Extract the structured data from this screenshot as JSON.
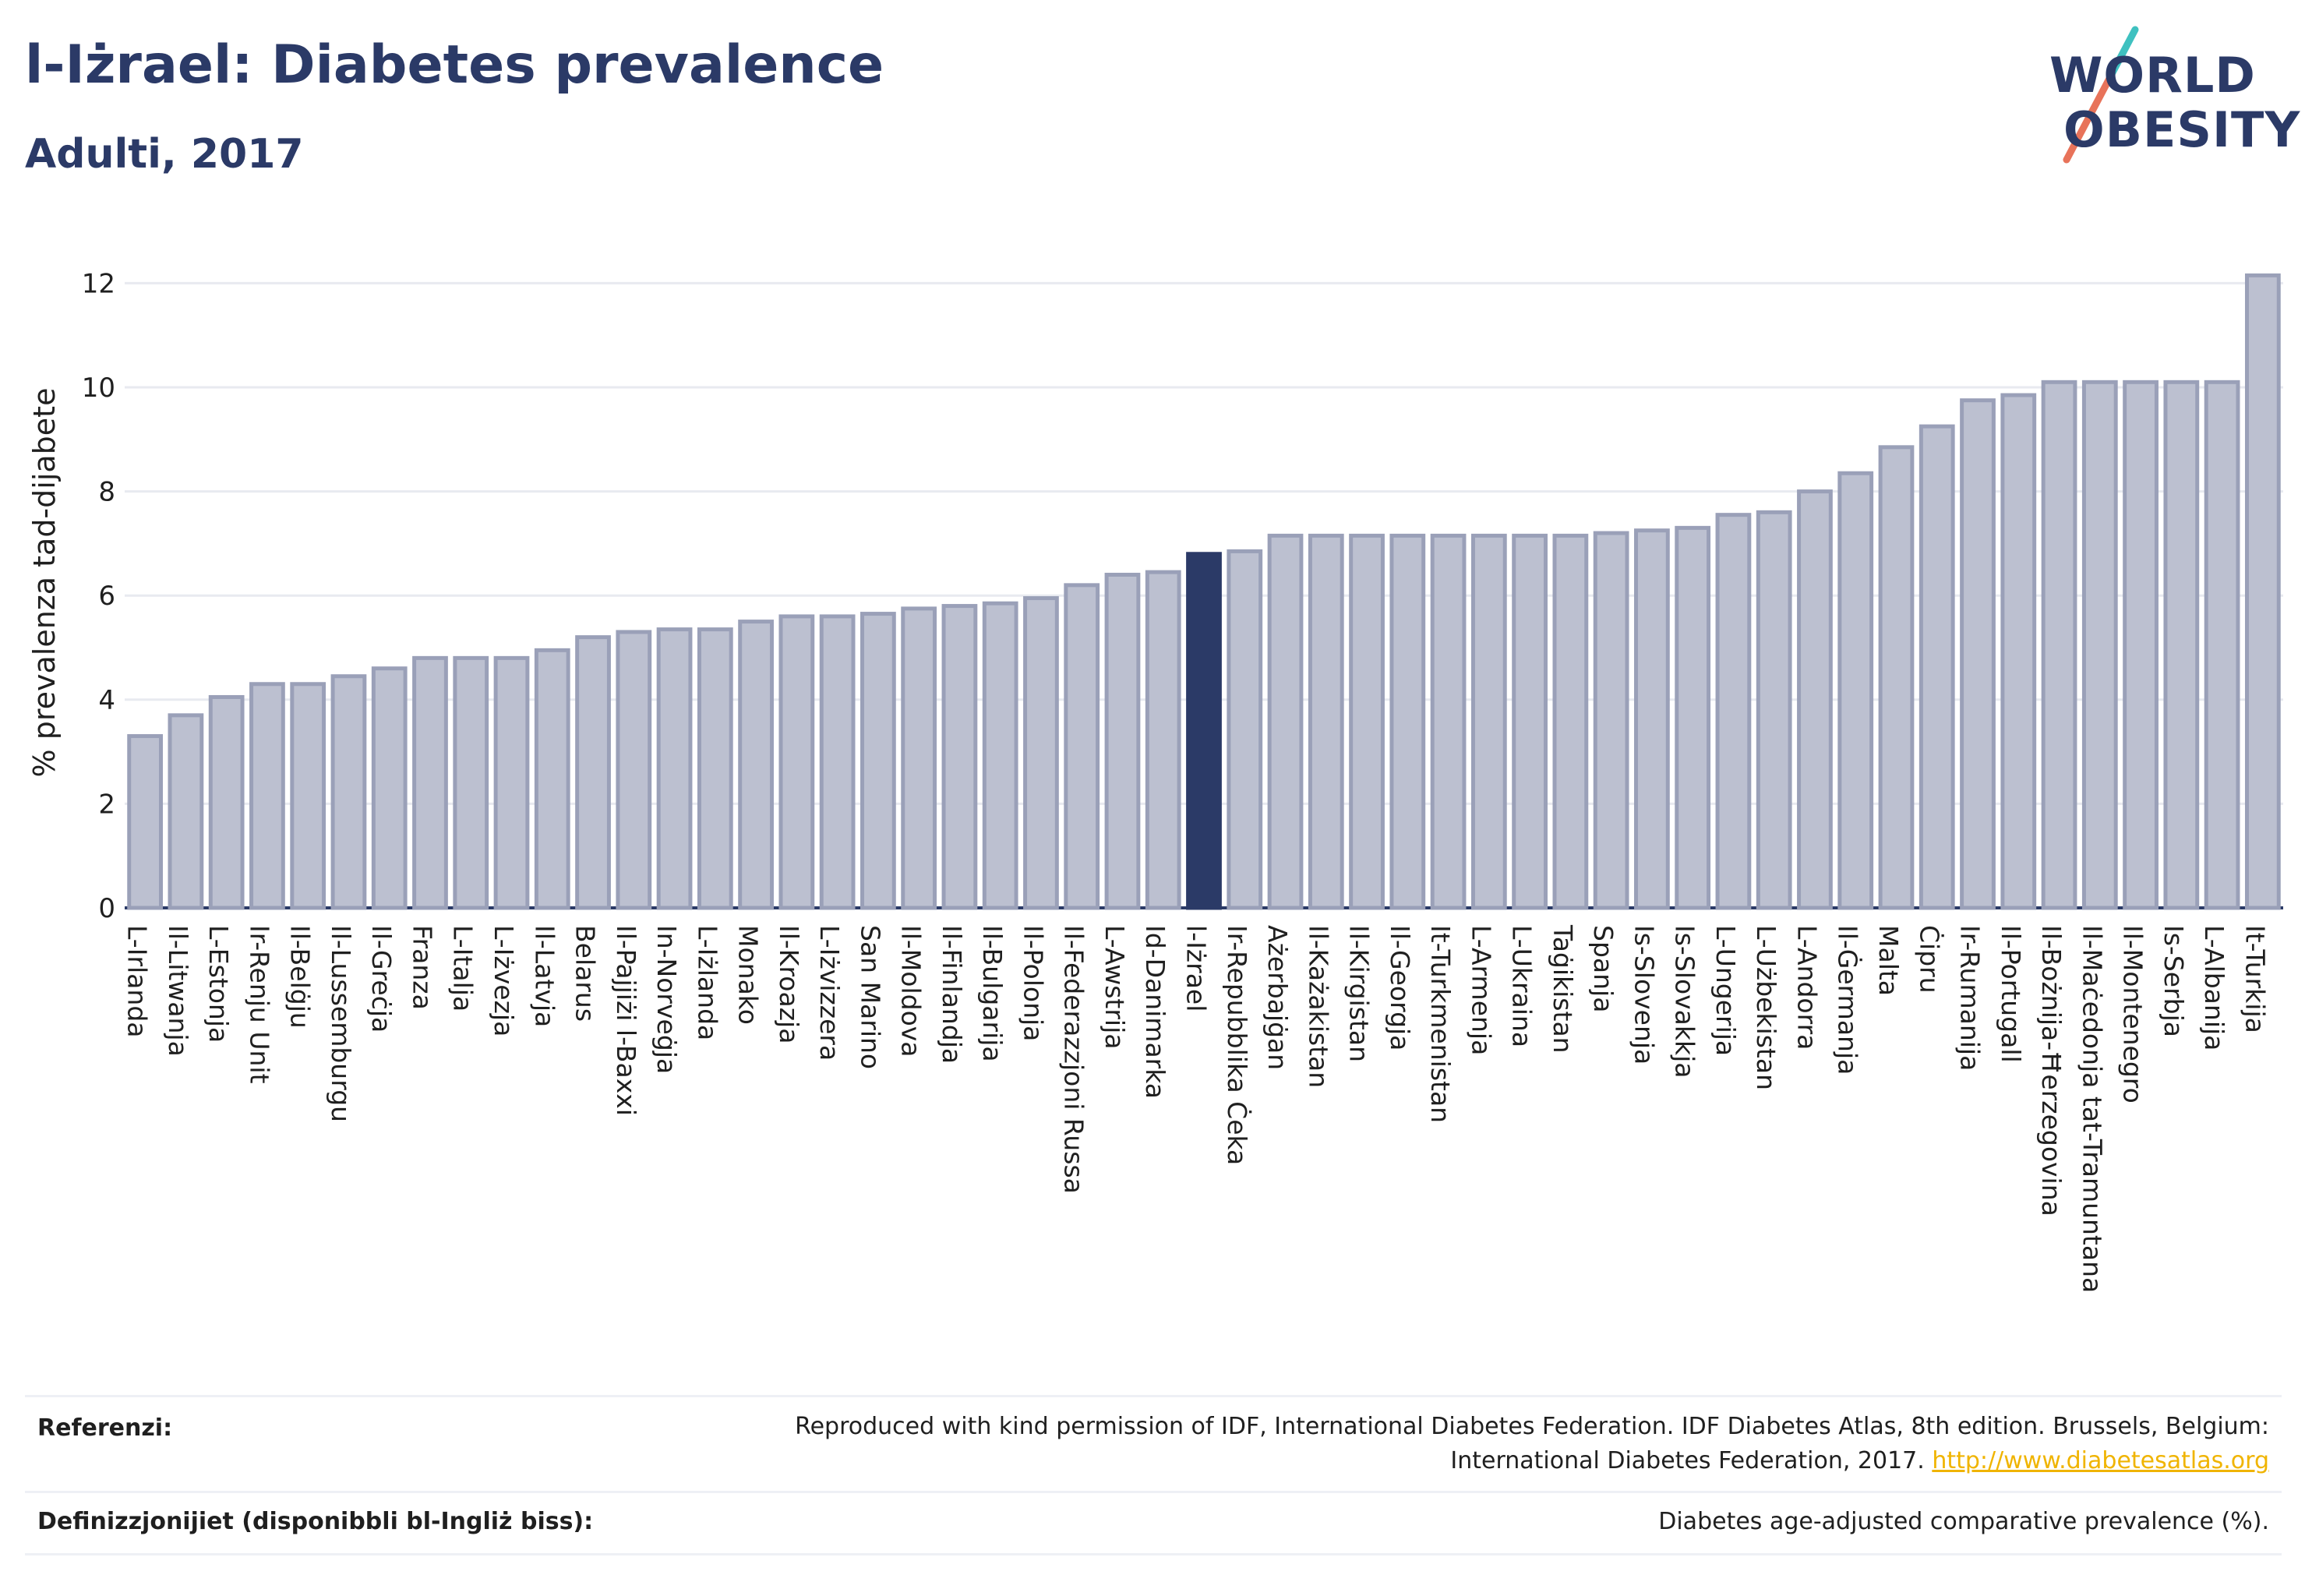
{
  "header": {
    "title": "l-Iżrael: Diabetes prevalence",
    "subtitle": "Adulti, 2017"
  },
  "logo": {
    "line1": "WORLD",
    "line2": "OBESITY",
    "accent_color": "#e8735a",
    "accent_color_2": "#3fc1c0"
  },
  "colors": {
    "bar_default": "#bcc0d0",
    "bar_default_stroke": "#9aa0b8",
    "bar_highlight": "#2b3a67",
    "text": "#2b3a67",
    "grid": "#e8eaf0",
    "link": "#f0b400"
  },
  "chart_data": {
    "type": "bar",
    "ylabel": "% prevalenza tad-dijabete",
    "ylim": [
      0,
      12.5
    ],
    "yticks": [
      0,
      2,
      4,
      6,
      8,
      10,
      12
    ],
    "grid": true,
    "highlight": "l-Iżrael",
    "categories": [
      "L-Irlanda",
      "Il-Litwanja",
      "L-Estonja",
      "Ir-Renju Unit",
      "Il-Belġju",
      "Il-Lussemburgu",
      "Il-Greċja",
      "Franza",
      "L-Italja",
      "L-Iżvezja",
      "Il-Latvja",
      "Belarus",
      "Il-Pajjiżi l-Baxxi",
      "In-Norveġja",
      "L-Iżlanda",
      "Monako",
      "Il-Kroazja",
      "L-Iżvizzera",
      "San Marino",
      "Il-Moldova",
      "Il-Finlandja",
      "Il-Bulgarija",
      "Il-Polonja",
      "Il-Federazzjoni Russa",
      "L-Awstrija",
      "Id-Danimarka",
      "l-Iżrael",
      "Ir-Repubblika Ċeka",
      "Ażerbajġan",
      "Il-Każakistan",
      "Il-Kirgistan",
      "Il-Georgja",
      "It-Turkmenistan",
      "L-Armenja",
      "L-Ukraina",
      "Taġikistan",
      "Spanja",
      "Is-Slovenja",
      "Is-Slovakkja",
      "L-Ungerija",
      "L-Użbekistan",
      "L-Andorra",
      "Il-Ġermanja",
      "Malta",
      "Ċipru",
      "Ir-Rumanija",
      "Il-Portugall",
      "Il-Bożnija-Ħerzegovina",
      "Il-Maċedonja tat-Tramuntana",
      "Il-Montenegro",
      "Is-Serbja",
      "L-Albanija",
      "It-Turkija"
    ],
    "values": [
      3.3,
      3.7,
      4.05,
      4.3,
      4.3,
      4.45,
      4.6,
      4.8,
      4.8,
      4.8,
      4.95,
      5.2,
      5.3,
      5.35,
      5.35,
      5.5,
      5.6,
      5.6,
      5.65,
      5.75,
      5.8,
      5.85,
      5.95,
      6.2,
      6.4,
      6.45,
      6.8,
      6.85,
      7.15,
      7.15,
      7.15,
      7.15,
      7.15,
      7.15,
      7.15,
      7.15,
      7.2,
      7.25,
      7.3,
      7.55,
      7.6,
      8.0,
      8.35,
      8.85,
      9.25,
      9.75,
      9.85,
      10.1,
      10.1,
      10.1,
      10.1,
      10.1,
      12.15
    ]
  },
  "footer": {
    "references_label": "Referenzi:",
    "references_text": "Reproduced with kind permission of IDF, International Diabetes Federation. IDF Diabetes Atlas, 8th edition. Brussels, Belgium:",
    "references_text2": "International Diabetes Federation, 2017.",
    "references_link": "http://www.diabetesatlas.org",
    "definitions_label": "Definizzjonijiet (disponibbli bl-Ingliż biss):",
    "definitions_text": "Diabetes age-adjusted comparative prevalence (%)."
  }
}
